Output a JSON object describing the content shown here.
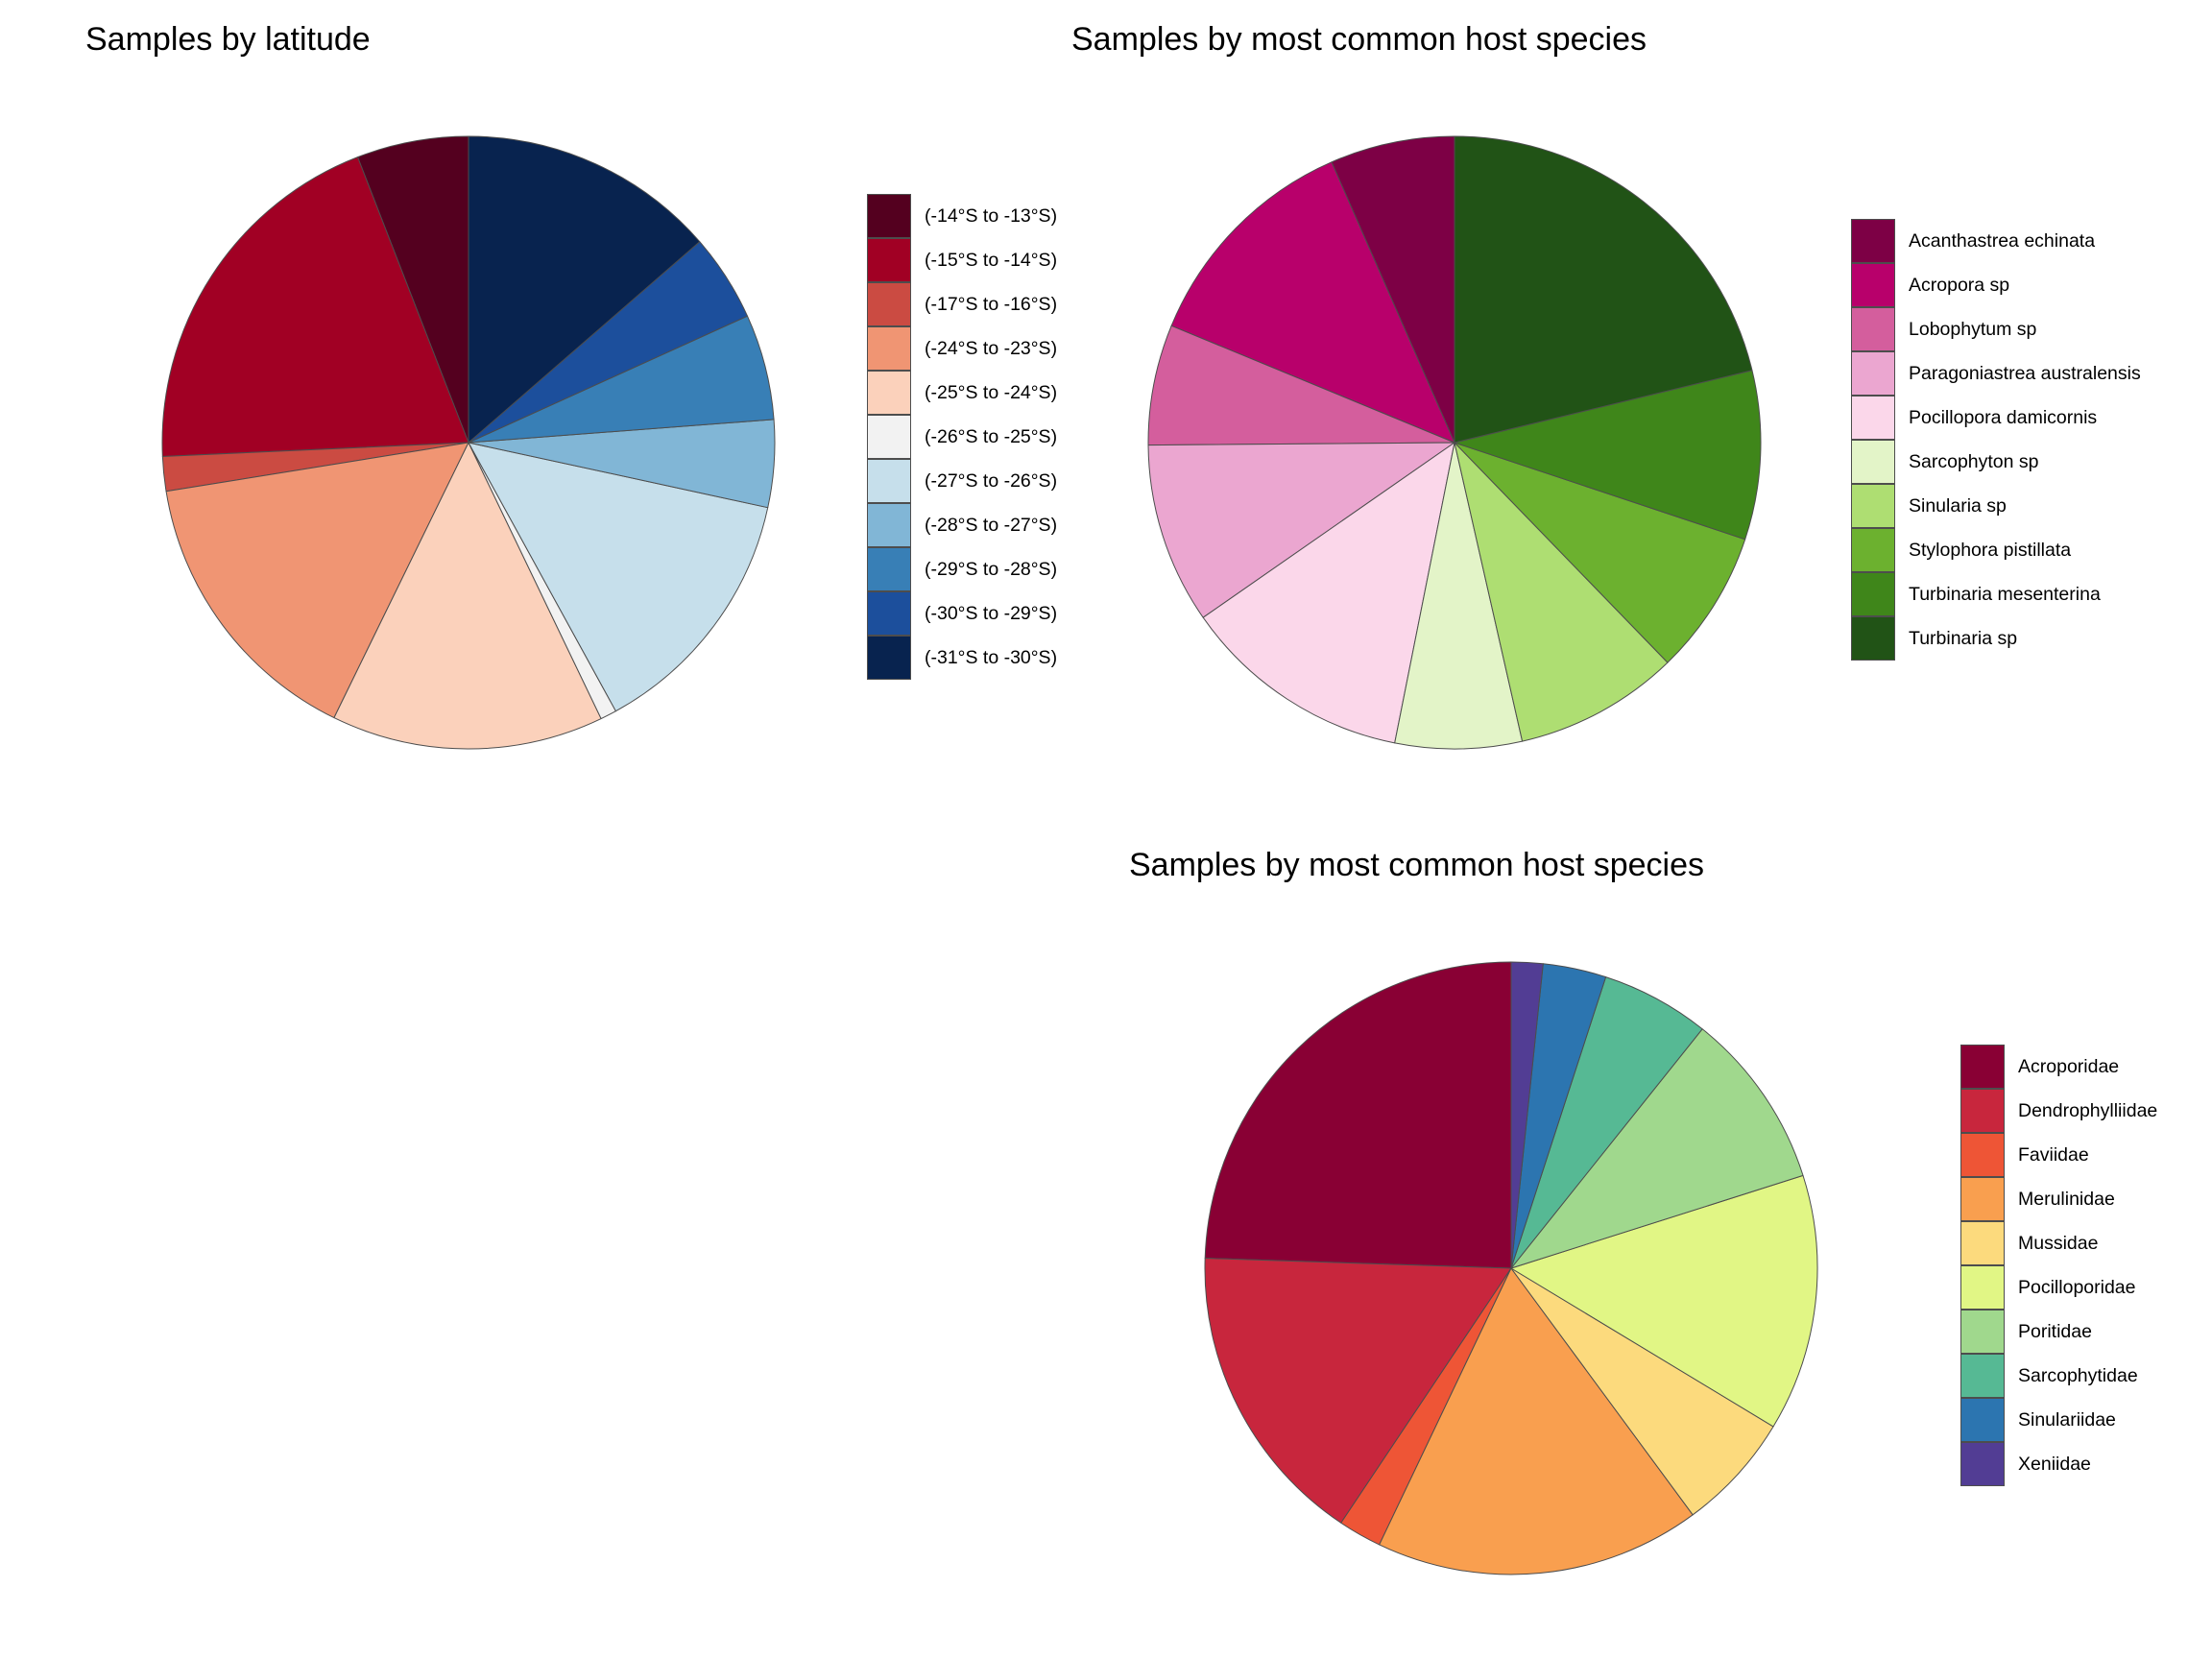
{
  "chart_data": [
    {
      "type": "pie",
      "title": "Samples by latitude",
      "slices": [
        {
          "label": "(-14°S to -13°S)",
          "value": 5.5,
          "color": "#54001f"
        },
        {
          "label": "(-15°S to -14°S)",
          "value": 18.5,
          "color": "#a10024"
        },
        {
          "label": "(-17°S to -16°S)",
          "value": 1.7,
          "color": "#cb4b42"
        },
        {
          "label": "(-24°S to -23°S)",
          "value": 14.2,
          "color": "#f09573"
        },
        {
          "label": "(-25°S to -24°S)",
          "value": 13.4,
          "color": "#fbd1bb"
        },
        {
          "label": "(-26°S to -25°S)",
          "value": 0.8,
          "color": "#f2f2f2"
        },
        {
          "label": "(-27°S to -26°S)",
          "value": 12.7,
          "color": "#c6dfeb"
        },
        {
          "label": "(-28°S to -27°S)",
          "value": 4.3,
          "color": "#81b6d6"
        },
        {
          "label": "(-29°S to -28°S)",
          "value": 5.2,
          "color": "#387fb6"
        },
        {
          "label": "(-30°S to -29°S)",
          "value": 4.3,
          "color": "#1c4f9c"
        },
        {
          "label": "(-31°S to -30°S)",
          "value": 12.7,
          "color": "#08234f"
        }
      ]
    },
    {
      "type": "pie",
      "title": "Samples by most common host species",
      "slices": [
        {
          "label": "Acanthastrea echinata",
          "value": 6.2,
          "color": "#7d0045"
        },
        {
          "label": "Acropora sp",
          "value": 11.5,
          "color": "#b8006b"
        },
        {
          "label": "Lobophytum sp",
          "value": 6.0,
          "color": "#d45e9d"
        },
        {
          "label": "Paragoniastrea australensis",
          "value": 9.0,
          "color": "#eba6d0"
        },
        {
          "label": "Pocillopora damicornis",
          "value": 11.5,
          "color": "#fbd7ea"
        },
        {
          "label": "Sarcophyton sp",
          "value": 6.3,
          "color": "#e3f4c8"
        },
        {
          "label": "Sinularia sp",
          "value": 8.2,
          "color": "#aede72"
        },
        {
          "label": "Stylophora pistillata",
          "value": 7.2,
          "color": "#6cb12f"
        },
        {
          "label": "Turbinaria mesenterina",
          "value": 8.4,
          "color": "#3f861a"
        },
        {
          "label": "Turbinaria sp",
          "value": 20.0,
          "color": "#215316"
        }
      ]
    },
    {
      "type": "pie",
      "title": "Samples by most common host species",
      "slices": [
        {
          "label": "Acroporidae",
          "value": 23.5,
          "color": "#890034"
        },
        {
          "label": "Dendrophylliidae",
          "value": 15.5,
          "color": "#c8263d"
        },
        {
          "label": "Faviidae",
          "value": 2.2,
          "color": "#ee5536"
        },
        {
          "label": "Merulinidae",
          "value": 16.5,
          "color": "#f99f4f"
        },
        {
          "label": "Mussidae",
          "value": 6.0,
          "color": "#fcda7d"
        },
        {
          "label": "Pocilloporidae",
          "value": 13.0,
          "color": "#e1f685"
        },
        {
          "label": "Poritidae",
          "value": 9.0,
          "color": "#a0d88d"
        },
        {
          "label": "Sarcophytidae",
          "value": 5.5,
          "color": "#56b994"
        },
        {
          "label": "Sinulariidae",
          "value": 3.2,
          "color": "#2c75b0"
        },
        {
          "label": "Xeniidae",
          "value": 1.6,
          "color": "#523d94"
        }
      ]
    }
  ]
}
